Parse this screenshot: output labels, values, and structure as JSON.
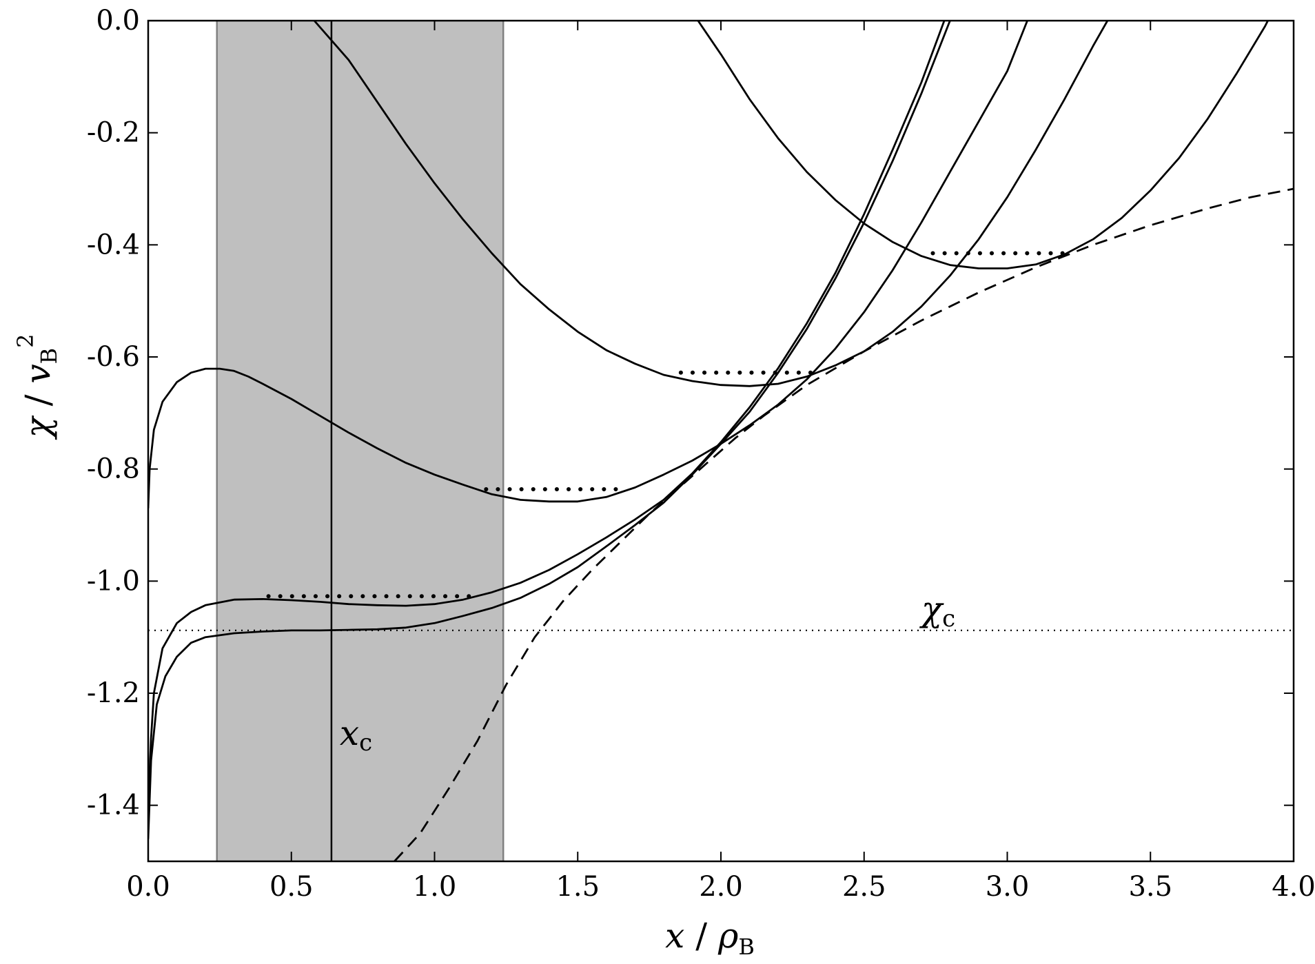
{
  "chart_data": {
    "type": "line",
    "xlim": [
      0.0,
      4.0
    ],
    "ylim": [
      -1.5,
      0.0
    ],
    "grid": false,
    "xlabel": {
      "main": "x",
      "sep": " / ",
      "symbol": "ρ",
      "sub": "B"
    },
    "ylabel": {
      "main": "χ",
      "sep": " / ",
      "symbol": "v",
      "sub": "B",
      "sup": "2"
    },
    "x_ticks": [
      0.0,
      0.5,
      1.0,
      1.5,
      2.0,
      2.5,
      3.0,
      3.5,
      4.0
    ],
    "x_tick_labels": [
      "0.0",
      "0.5",
      "1.0",
      "1.5",
      "2.0",
      "2.5",
      "3.0",
      "3.5",
      "4.0"
    ],
    "y_ticks": [
      0.0,
      -0.2,
      -0.4,
      -0.6,
      -0.8,
      -1.0,
      -1.2,
      -1.4
    ],
    "y_tick_labels": [
      "0.0",
      "-0.2",
      "-0.4",
      "-0.6",
      "-0.8",
      "-1.0",
      "-1.2",
      "-1.4"
    ],
    "shaded_band": {
      "x0": 0.24,
      "x1": 1.24,
      "color": "#bfbfbf"
    },
    "x_c": {
      "value": 0.64,
      "label_main": "x",
      "label_sub": "c",
      "label_y": -1.27
    },
    "chi_c": {
      "value": -1.088,
      "label_main": "χ",
      "label_sub": "c",
      "label_x": 2.7
    },
    "series": [
      {
        "style": "solid",
        "points": [
          [
            0.0,
            -1.46
          ],
          [
            0.01,
            -1.32
          ],
          [
            0.03,
            -1.22
          ],
          [
            0.06,
            -1.17
          ],
          [
            0.1,
            -1.135
          ],
          [
            0.15,
            -1.11
          ],
          [
            0.2,
            -1.1
          ],
          [
            0.3,
            -1.093
          ],
          [
            0.4,
            -1.09
          ],
          [
            0.5,
            -1.088
          ],
          [
            0.6,
            -1.088
          ],
          [
            0.7,
            -1.087
          ],
          [
            0.8,
            -1.086
          ],
          [
            0.9,
            -1.083
          ],
          [
            1.0,
            -1.075
          ],
          [
            1.1,
            -1.062
          ],
          [
            1.2,
            -1.048
          ],
          [
            1.3,
            -1.03
          ],
          [
            1.4,
            -1.005
          ],
          [
            1.5,
            -0.975
          ],
          [
            1.6,
            -0.938
          ],
          [
            1.7,
            -0.9
          ],
          [
            1.8,
            -0.86
          ],
          [
            1.9,
            -0.81
          ],
          [
            2.0,
            -0.755
          ],
          [
            2.1,
            -0.698
          ],
          [
            2.2,
            -0.628
          ],
          [
            2.3,
            -0.55
          ],
          [
            2.4,
            -0.46
          ],
          [
            2.5,
            -0.36
          ],
          [
            2.6,
            -0.25
          ],
          [
            2.7,
            -0.13
          ],
          [
            2.8,
            0.0
          ]
        ]
      },
      {
        "style": "solid",
        "points": [
          [
            0.0,
            -1.4
          ],
          [
            0.01,
            -1.28
          ],
          [
            0.02,
            -1.2
          ],
          [
            0.05,
            -1.12
          ],
          [
            0.1,
            -1.075
          ],
          [
            0.15,
            -1.055
          ],
          [
            0.2,
            -1.043
          ],
          [
            0.3,
            -1.033
          ],
          [
            0.4,
            -1.032
          ],
          [
            0.5,
            -1.034
          ],
          [
            0.6,
            -1.037
          ],
          [
            0.7,
            -1.041
          ],
          [
            0.8,
            -1.043
          ],
          [
            0.9,
            -1.044
          ],
          [
            1.0,
            -1.041
          ],
          [
            1.1,
            -1.033
          ],
          [
            1.2,
            -1.02
          ],
          [
            1.3,
            -1.003
          ],
          [
            1.4,
            -0.98
          ],
          [
            1.5,
            -0.952
          ],
          [
            1.6,
            -0.922
          ],
          [
            1.7,
            -0.89
          ],
          [
            1.8,
            -0.855
          ],
          [
            1.9,
            -0.808
          ],
          [
            2.0,
            -0.752
          ],
          [
            2.1,
            -0.69
          ],
          [
            2.2,
            -0.62
          ],
          [
            2.3,
            -0.54
          ],
          [
            2.4,
            -0.45
          ],
          [
            2.5,
            -0.345
          ],
          [
            2.6,
            -0.23
          ],
          [
            2.7,
            -0.11
          ],
          [
            2.78,
            0.0
          ]
        ]
      },
      {
        "style": "solid",
        "points": [
          [
            0.0,
            -0.87
          ],
          [
            0.005,
            -0.8
          ],
          [
            0.02,
            -0.73
          ],
          [
            0.05,
            -0.68
          ],
          [
            0.1,
            -0.645
          ],
          [
            0.15,
            -0.628
          ],
          [
            0.2,
            -0.621
          ],
          [
            0.25,
            -0.621
          ],
          [
            0.3,
            -0.625
          ],
          [
            0.35,
            -0.635
          ],
          [
            0.4,
            -0.648
          ],
          [
            0.5,
            -0.675
          ],
          [
            0.6,
            -0.705
          ],
          [
            0.7,
            -0.735
          ],
          [
            0.8,
            -0.763
          ],
          [
            0.9,
            -0.789
          ],
          [
            1.0,
            -0.81
          ],
          [
            1.1,
            -0.828
          ],
          [
            1.2,
            -0.845
          ],
          [
            1.3,
            -0.855
          ],
          [
            1.4,
            -0.858
          ],
          [
            1.5,
            -0.858
          ],
          [
            1.6,
            -0.85
          ],
          [
            1.7,
            -0.833
          ],
          [
            1.8,
            -0.81
          ],
          [
            1.9,
            -0.785
          ],
          [
            2.0,
            -0.755
          ],
          [
            2.1,
            -0.722
          ],
          [
            2.2,
            -0.685
          ],
          [
            2.3,
            -0.64
          ],
          [
            2.4,
            -0.585
          ],
          [
            2.5,
            -0.52
          ],
          [
            2.6,
            -0.445
          ],
          [
            2.7,
            -0.36
          ],
          [
            2.8,
            -0.27
          ],
          [
            2.9,
            -0.18
          ],
          [
            3.0,
            -0.09
          ],
          [
            3.07,
            0.0
          ]
        ]
      },
      {
        "style": "solid",
        "points": [
          [
            0.58,
            0.0
          ],
          [
            0.7,
            -0.07
          ],
          [
            0.8,
            -0.145
          ],
          [
            0.9,
            -0.22
          ],
          [
            1.0,
            -0.29
          ],
          [
            1.1,
            -0.355
          ],
          [
            1.2,
            -0.415
          ],
          [
            1.3,
            -0.47
          ],
          [
            1.4,
            -0.515
          ],
          [
            1.5,
            -0.555
          ],
          [
            1.6,
            -0.588
          ],
          [
            1.7,
            -0.612
          ],
          [
            1.8,
            -0.632
          ],
          [
            1.9,
            -0.643
          ],
          [
            2.0,
            -0.65
          ],
          [
            2.1,
            -0.652
          ],
          [
            2.2,
            -0.648
          ],
          [
            2.3,
            -0.635
          ],
          [
            2.4,
            -0.615
          ],
          [
            2.5,
            -0.59
          ],
          [
            2.6,
            -0.555
          ],
          [
            2.7,
            -0.51
          ],
          [
            2.8,
            -0.455
          ],
          [
            2.9,
            -0.39
          ],
          [
            3.0,
            -0.315
          ],
          [
            3.1,
            -0.23
          ],
          [
            3.2,
            -0.14
          ],
          [
            3.3,
            -0.045
          ],
          [
            3.35,
            0.0
          ]
        ]
      },
      {
        "style": "solid",
        "points": [
          [
            1.92,
            0.0
          ],
          [
            2.0,
            -0.06
          ],
          [
            2.1,
            -0.14
          ],
          [
            2.2,
            -0.21
          ],
          [
            2.3,
            -0.27
          ],
          [
            2.4,
            -0.32
          ],
          [
            2.5,
            -0.362
          ],
          [
            2.6,
            -0.395
          ],
          [
            2.7,
            -0.42
          ],
          [
            2.8,
            -0.436
          ],
          [
            2.9,
            -0.442
          ],
          [
            3.0,
            -0.442
          ],
          [
            3.1,
            -0.435
          ],
          [
            3.2,
            -0.417
          ],
          [
            3.3,
            -0.39
          ],
          [
            3.4,
            -0.352
          ],
          [
            3.5,
            -0.303
          ],
          [
            3.6,
            -0.245
          ],
          [
            3.7,
            -0.175
          ],
          [
            3.8,
            -0.095
          ],
          [
            3.9,
            -0.01
          ],
          [
            3.91,
            0.0
          ]
        ]
      },
      {
        "style": "dashed",
        "points": [
          [
            0.86,
            -1.5
          ],
          [
            0.95,
            -1.45
          ],
          [
            1.05,
            -1.37
          ],
          [
            1.15,
            -1.285
          ],
          [
            1.25,
            -1.185
          ],
          [
            1.35,
            -1.1
          ],
          [
            1.45,
            -1.035
          ],
          [
            1.55,
            -0.98
          ],
          [
            1.65,
            -0.93
          ],
          [
            1.75,
            -0.88
          ],
          [
            1.85,
            -0.835
          ],
          [
            1.95,
            -0.79
          ],
          [
            2.05,
            -0.745
          ],
          [
            2.15,
            -0.705
          ],
          [
            2.3,
            -0.65
          ],
          [
            2.5,
            -0.59
          ],
          [
            2.7,
            -0.535
          ],
          [
            2.9,
            -0.485
          ],
          [
            3.1,
            -0.44
          ],
          [
            3.3,
            -0.4
          ],
          [
            3.5,
            -0.365
          ],
          [
            3.7,
            -0.335
          ],
          [
            3.85,
            -0.315
          ],
          [
            4.0,
            -0.3
          ]
        ]
      }
    ],
    "plateau_lines": [
      {
        "x0": 0.42,
        "x1": 1.14,
        "y": -1.027
      },
      {
        "x0": 1.18,
        "x1": 1.65,
        "y": -0.836
      },
      {
        "x0": 1.86,
        "x1": 2.32,
        "y": -0.628
      },
      {
        "x0": 2.74,
        "x1": 3.2,
        "y": -0.415
      }
    ]
  }
}
